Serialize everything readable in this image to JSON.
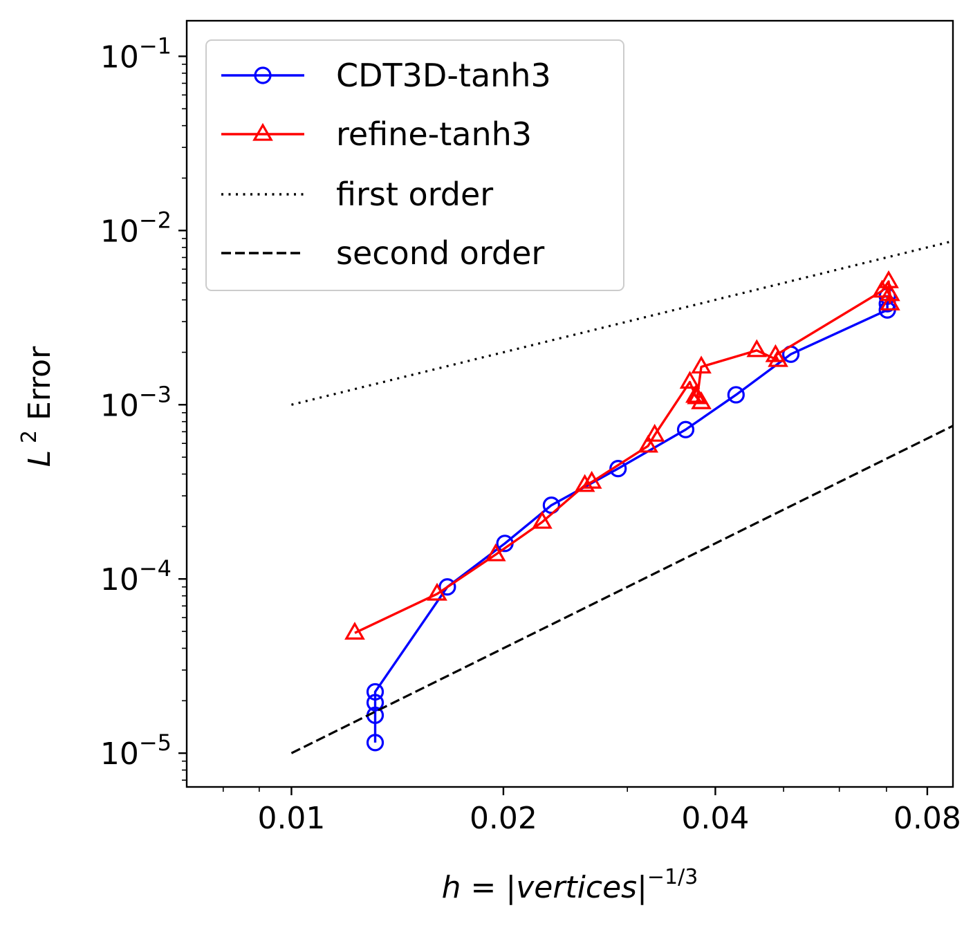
{
  "chart_data": {
    "type": "line",
    "xscale": "log",
    "yscale": "log",
    "xlim": [
      0.0071,
      0.087
    ],
    "ylim": [
      6.4e-06,
      0.16
    ],
    "xlabel": "h = |vertices|^{-1/3}",
    "ylabel": "L^2 Error",
    "xticks": [
      {
        "value": 0.01,
        "label": "0.01"
      },
      {
        "value": 0.02,
        "label": "0.02"
      },
      {
        "value": 0.04,
        "label": "0.04"
      },
      {
        "value": 0.08,
        "label": "0.08"
      }
    ],
    "yticks": [
      {
        "value": 0.1,
        "base": "10",
        "exp": "−1"
      },
      {
        "value": 0.01,
        "base": "10",
        "exp": "−2"
      },
      {
        "value": 0.001,
        "base": "10",
        "exp": "−3"
      },
      {
        "value": 0.0001,
        "base": "10",
        "exp": "−4"
      },
      {
        "value": 1e-05,
        "base": "10",
        "exp": "−5"
      }
    ],
    "grid": false,
    "legend_position": "top-left",
    "series": [
      {
        "name": "CDT3D-tanh3",
        "color": "#0000ff",
        "marker": "circle",
        "linestyle": "solid",
        "x": [
          0.01315,
          0.01315,
          0.01315,
          0.01315,
          0.01665,
          0.0201,
          0.0234,
          0.0291,
          0.0363,
          0.0428,
          0.0512,
          0.0702,
          0.0702,
          0.0702
        ],
        "y": [
          1.15e-05,
          1.65e-05,
          1.95e-05,
          2.25e-05,
          9e-05,
          0.00016,
          0.000265,
          0.00043,
          0.00072,
          0.00114,
          0.00195,
          0.0035,
          0.0038,
          0.0042
        ]
      },
      {
        "name": "refine-tanh3",
        "color": "#ff0000",
        "marker": "triangle",
        "linestyle": "solid",
        "x": [
          0.0123,
          0.0161,
          0.0195,
          0.0227,
          0.0261,
          0.0267,
          0.0321,
          0.0328,
          0.0368,
          0.0375,
          0.0382,
          0.0377,
          0.0382,
          0.0458,
          0.0491,
          0.0487,
          0.069,
          0.0705,
          0.0708,
          0.0708
        ],
        "y": [
          4.9e-05,
          8.2e-05,
          0.000138,
          0.000212,
          0.000345,
          0.00036,
          0.00058,
          0.00067,
          0.00135,
          0.00112,
          0.00103,
          0.0011,
          0.00165,
          0.00205,
          0.0018,
          0.00192,
          0.0045,
          0.0051,
          0.0043,
          0.0038
        ]
      },
      {
        "name": "first order",
        "color": "#000000",
        "marker": "none",
        "linestyle": "dotted",
        "x": [
          0.01,
          0.1
        ],
        "y": [
          0.001,
          0.01
        ]
      },
      {
        "name": "second order",
        "color": "#000000",
        "marker": "none",
        "linestyle": "dashed",
        "x": [
          0.01,
          0.1
        ],
        "y": [
          1e-05,
          0.001
        ]
      }
    ]
  }
}
